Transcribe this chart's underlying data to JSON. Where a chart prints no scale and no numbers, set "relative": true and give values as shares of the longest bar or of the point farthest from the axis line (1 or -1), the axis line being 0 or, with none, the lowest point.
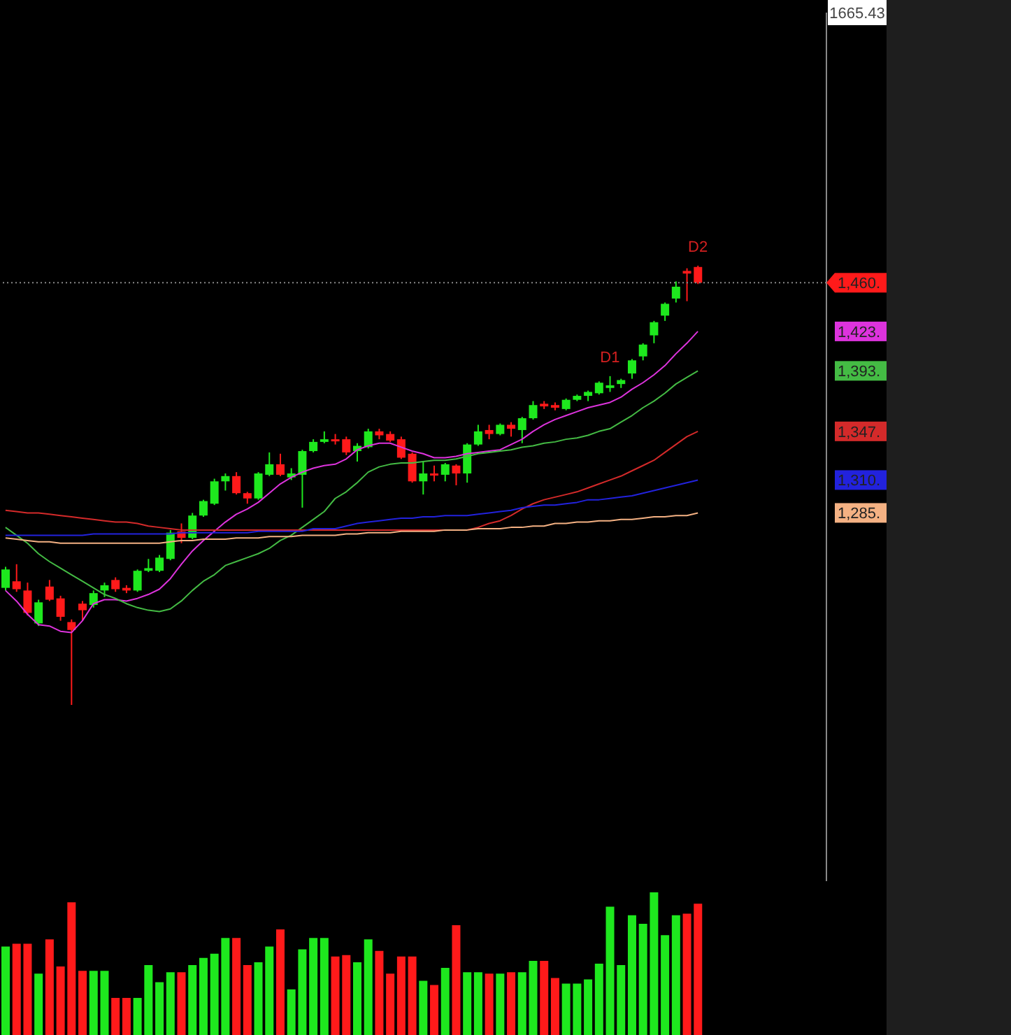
{
  "chart_data": [
    {
      "type": "candlestick",
      "categories": [
        null,
        null,
        null,
        null,
        null,
        null,
        null,
        null,
        null,
        null,
        null,
        null,
        null,
        null,
        null,
        null,
        null,
        null,
        null,
        null,
        null,
        null,
        null,
        null,
        null,
        null,
        null,
        null,
        null,
        null,
        null,
        null,
        null,
        null,
        null,
        null,
        null,
        null,
        null,
        null,
        null,
        null,
        null,
        null,
        null,
        null,
        null,
        null,
        null,
        null,
        null,
        null,
        null,
        null,
        null,
        null,
        null,
        null,
        null,
        null,
        null,
        null,
        null,
        null
      ],
      "ohlc": [
        [
          1228,
          1244,
          1226,
          1242
        ],
        [
          1233,
          1246,
          1225,
          1227
        ],
        [
          1226,
          1232,
          1207,
          1209
        ],
        [
          1201,
          1219,
          1199,
          1217
        ],
        [
          1229,
          1234,
          1218,
          1219
        ],
        [
          1220,
          1222,
          1203,
          1206
        ],
        [
          1202,
          1204,
          1139,
          1196
        ],
        [
          1216,
          1218,
          1203,
          1211
        ],
        [
          1215,
          1226,
          1213,
          1224
        ],
        [
          1226,
          1232,
          1221,
          1230
        ],
        [
          1234,
          1236,
          1225,
          1227
        ],
        [
          1228,
          1230,
          1224,
          1226
        ],
        [
          1226,
          1242,
          1225,
          1241
        ],
        [
          1241,
          1250,
          1240,
          1243
        ],
        [
          1241,
          1253,
          1240,
          1251
        ],
        [
          1250,
          1272,
          1249,
          1270
        ],
        [
          1271,
          1277,
          1262,
          1266
        ],
        [
          1266,
          1285,
          1265,
          1283
        ],
        [
          1283,
          1295,
          1282,
          1294
        ],
        [
          1292,
          1311,
          1291,
          1309
        ],
        [
          1309,
          1315,
          1302,
          1313
        ],
        [
          1313,
          1316,
          1299,
          1300
        ],
        [
          1300,
          1301,
          1292,
          1296
        ],
        [
          1296,
          1316,
          1295,
          1315
        ],
        [
          1314,
          1331,
          1313,
          1322
        ],
        [
          1322,
          1330,
          1313,
          1314
        ],
        [
          1312,
          1319,
          1310,
          1315
        ],
        [
          1314,
          1333,
          1289,
          1332
        ],
        [
          1332,
          1341,
          1331,
          1339
        ],
        [
          1339,
          1347,
          1338,
          1341
        ],
        [
          1341,
          1345,
          1337,
          1340
        ],
        [
          1341,
          1343,
          1329,
          1331
        ],
        [
          1332,
          1338,
          1324,
          1336
        ],
        [
          1335,
          1349,
          1334,
          1347
        ],
        [
          1347,
          1349,
          1341,
          1344
        ],
        [
          1345,
          1347,
          1339,
          1340
        ],
        [
          1341,
          1343,
          1326,
          1327
        ],
        [
          1330,
          1331,
          1308,
          1309
        ],
        [
          1309,
          1324,
          1299,
          1315
        ],
        [
          1315,
          1321,
          1309,
          1314
        ],
        [
          1314,
          1323,
          1309,
          1322
        ],
        [
          1321,
          1322,
          1306,
          1315
        ],
        [
          1315,
          1338,
          1308,
          1337
        ],
        [
          1337,
          1352,
          1336,
          1347
        ],
        [
          1348,
          1352,
          1341,
          1345
        ],
        [
          1345,
          1353,
          1344,
          1352
        ],
        [
          1352,
          1354,
          1343,
          1349
        ],
        [
          1348,
          1358,
          1338,
          1357
        ],
        [
          1357,
          1370,
          1356,
          1367
        ],
        [
          1368,
          1370,
          1364,
          1366
        ],
        [
          1367,
          1369,
          1363,
          1365
        ],
        [
          1364,
          1372,
          1363,
          1371
        ],
        [
          1371,
          1375,
          1370,
          1374
        ],
        [
          1374,
          1378,
          1370,
          1377
        ],
        [
          1376,
          1385,
          1375,
          1384
        ],
        [
          1380,
          1389,
          1377,
          1382
        ],
        [
          1383,
          1387,
          1380,
          1386
        ],
        [
          1391,
          1402,
          1387,
          1401
        ],
        [
          1404,
          1414,
          1401,
          1413
        ],
        [
          1420,
          1431,
          1414,
          1430
        ],
        [
          1435,
          1445,
          1431,
          1444
        ],
        [
          1448,
          1461,
          1445,
          1457
        ],
        [
          1469,
          1471,
          1446,
          1467
        ],
        [
          1472,
          1473,
          1459,
          1460
        ]
      ],
      "colors": [
        "#1ee81e",
        "#ff1a1a",
        "#ff1a1a",
        "#1ee81e",
        "#ff1a1a",
        "#ff1a1a",
        "#ff1a1a",
        "#ff1a1a",
        "#1ee81e",
        "#1ee81e",
        "#ff1a1a",
        "#ff1a1a",
        "#1ee81e",
        "#1ee81e",
        "#1ee81e",
        "#1ee81e",
        "#ff1a1a",
        "#1ee81e",
        "#1ee81e",
        "#1ee81e",
        "#1ee81e",
        "#ff1a1a",
        "#ff1a1a",
        "#1ee81e",
        "#1ee81e",
        "#ff1a1a",
        "#1ee81e",
        "#1ee81e",
        "#1ee81e",
        "#1ee81e",
        "#ff1a1a",
        "#ff1a1a",
        "#1ee81e",
        "#1ee81e",
        "#ff1a1a",
        "#ff1a1a",
        "#ff1a1a",
        "#ff1a1a",
        "#1ee81e",
        "#ff1a1a",
        "#1ee81e",
        "#ff1a1a",
        "#1ee81e",
        "#1ee81e",
        "#ff1a1a",
        "#1ee81e",
        "#ff1a1a",
        "#1ee81e",
        "#1ee81e",
        "#ff1a1a",
        "#ff1a1a",
        "#1ee81e",
        "#1ee81e",
        "#1ee81e",
        "#1ee81e",
        "#1ee81e",
        "#1ee81e",
        "#1ee81e",
        "#1ee81e",
        "#1ee81e",
        "#1ee81e",
        "#1ee81e",
        "#ff1a1a",
        "#ff1a1a"
      ],
      "value_labels": [
        null,
        null,
        null,
        null,
        null,
        null,
        null,
        null,
        null,
        null,
        null,
        null,
        null,
        null,
        null,
        null,
        null,
        null,
        null,
        null,
        null,
        null,
        null,
        null,
        null,
        null,
        null,
        null,
        null,
        null,
        null,
        null,
        null,
        null,
        null,
        null,
        null,
        null,
        null,
        null,
        null,
        null,
        null,
        null,
        null,
        null,
        null,
        null,
        null,
        null,
        null,
        null,
        null,
        null,
        null,
        "D1",
        null,
        null,
        null,
        null,
        null,
        null,
        null,
        "D2"
      ],
      "series": [
        {
          "type": "line",
          "color": "#dd33dd",
          "values": [
            1226,
            1218,
            1208,
            1200,
            1199,
            1195,
            1194,
            1203,
            1216,
            1219,
            1219,
            1218,
            1220,
            1223,
            1227,
            1235,
            1246,
            1256,
            1264,
            1271,
            1278,
            1284,
            1288,
            1293,
            1300,
            1307,
            1312,
            1316,
            1319,
            1321,
            1322,
            1326,
            1333,
            1336,
            1338,
            1338,
            1335,
            1332,
            1330,
            1327,
            1327,
            1328,
            1330,
            1331,
            1332,
            1333,
            1337,
            1341,
            1347,
            1352,
            1356,
            1359,
            1362,
            1365,
            1367,
            1369,
            1373,
            1379,
            1384,
            1390,
            1397,
            1406,
            1414,
            1423
          ]
        },
        {
          "type": "line",
          "color": "#44bb44",
          "values": [
            1274,
            1268,
            1262,
            1254,
            1248,
            1243,
            1238,
            1233,
            1228,
            1223,
            1220,
            1216,
            1213,
            1211,
            1210,
            1212,
            1218,
            1226,
            1233,
            1238,
            1245,
            1248,
            1251,
            1254,
            1258,
            1264,
            1268,
            1274,
            1280,
            1286,
            1296,
            1301,
            1308,
            1316,
            1320,
            1322,
            1323,
            1323,
            1324,
            1325,
            1325,
            1326,
            1328,
            1330,
            1331,
            1332,
            1333,
            1335,
            1336,
            1338,
            1339,
            1341,
            1342,
            1344,
            1347,
            1349,
            1354,
            1359,
            1365,
            1370,
            1376,
            1383,
            1388,
            1393
          ]
        },
        {
          "type": "line",
          "color": "#d42a2a",
          "values": [
            1287,
            1286,
            1285,
            1285,
            1284,
            1283,
            1282,
            1281,
            1280,
            1279,
            1278,
            1278,
            1277,
            1275,
            1274,
            1273,
            1272,
            1272,
            1272,
            1272,
            1272,
            1272,
            1272,
            1272,
            1272,
            1272,
            1272,
            1272,
            1272,
            1272,
            1272,
            1272,
            1272,
            1272,
            1272,
            1272,
            1272,
            1272,
            1272,
            1272,
            1272,
            1272,
            1272,
            1274,
            1277,
            1279,
            1283,
            1288,
            1292,
            1295,
            1297,
            1299,
            1301,
            1304,
            1307,
            1310,
            1313,
            1317,
            1321,
            1325,
            1331,
            1337,
            1343,
            1347
          ]
        },
        {
          "type": "line",
          "color": "#2222dd",
          "values": [
            1268,
            1268,
            1268,
            1268,
            1268,
            1268,
            1268,
            1268,
            1269,
            1269,
            1269,
            1269,
            1269,
            1269,
            1269,
            1269,
            1270,
            1270,
            1270,
            1270,
            1270,
            1270,
            1270,
            1271,
            1271,
            1271,
            1271,
            1271,
            1273,
            1273,
            1273,
            1275,
            1277,
            1278,
            1279,
            1280,
            1281,
            1281,
            1282,
            1282,
            1283,
            1283,
            1283,
            1284,
            1285,
            1286,
            1287,
            1289,
            1290,
            1291,
            1291,
            1292,
            1293,
            1295,
            1295,
            1296,
            1297,
            1298,
            1300,
            1302,
            1304,
            1306,
            1308,
            1310
          ]
        },
        {
          "type": "line",
          "color": "#f4b183",
          "values": [
            1266,
            1265,
            1264,
            1263,
            1263,
            1262,
            1262,
            1262,
            1262,
            1262,
            1262,
            1262,
            1262,
            1262,
            1262,
            1263,
            1264,
            1264,
            1265,
            1265,
            1265,
            1266,
            1266,
            1266,
            1267,
            1267,
            1267,
            1268,
            1268,
            1268,
            1268,
            1269,
            1269,
            1270,
            1270,
            1270,
            1271,
            1271,
            1271,
            1271,
            1272,
            1272,
            1272,
            1273,
            1273,
            1273,
            1274,
            1274,
            1275,
            1275,
            1277,
            1277,
            1278,
            1278,
            1279,
            1279,
            1280,
            1280,
            1281,
            1282,
            1282,
            1283,
            1283,
            1285
          ]
        }
      ],
      "ref_lines": [
        {
          "axis": "y",
          "value": 1460,
          "color": "#888888",
          "line_style": "dotted"
        }
      ],
      "ylim": [
        1005,
        1665.43
      ],
      "yticks": [
        {
          "value": 1665.43,
          "label": "1665.43"
        },
        {
          "value": 1460,
          "label": "1,460."
        },
        {
          "value": 1423,
          "label": "1,423."
        },
        {
          "value": 1393,
          "label": "1,393."
        },
        {
          "value": 1347,
          "label": "1,347."
        },
        {
          "value": 1310,
          "label": "1,310."
        },
        {
          "value": 1285,
          "label": "1,285."
        }
      ],
      "tick_labels": "y"
    },
    {
      "type": "bar",
      "relative": true,
      "categories": [
        null,
        null,
        null,
        null,
        null,
        null,
        null,
        null,
        null,
        null,
        null,
        null,
        null,
        null,
        null,
        null,
        null,
        null,
        null,
        null,
        null,
        null,
        null,
        null,
        null,
        null,
        null,
        null,
        null,
        null,
        null,
        null,
        null,
        null,
        null,
        null,
        null,
        null,
        null,
        null,
        null,
        null,
        null,
        null,
        null,
        null,
        null,
        null,
        null,
        null,
        null,
        null,
        null,
        null,
        null,
        null,
        null,
        null,
        null,
        null,
        null,
        null,
        null,
        null
      ],
      "values": [
        0.62,
        0.64,
        0.64,
        0.43,
        0.67,
        0.48,
        0.93,
        0.45,
        0.45,
        0.45,
        0.26,
        0.26,
        0.26,
        0.49,
        0.37,
        0.44,
        0.44,
        0.49,
        0.54,
        0.57,
        0.68,
        0.68,
        0.49,
        0.51,
        0.62,
        0.74,
        0.32,
        0.6,
        0.68,
        0.68,
        0.55,
        0.56,
        0.51,
        0.67,
        0.59,
        0.43,
        0.55,
        0.55,
        0.38,
        0.35,
        0.47,
        0.77,
        0.44,
        0.44,
        0.43,
        0.43,
        0.44,
        0.44,
        0.52,
        0.52,
        0.4,
        0.36,
        0.36,
        0.39,
        0.5,
        0.9,
        0.49,
        0.84,
        0.78,
        1,
        0.7,
        0.84,
        0.85,
        0.92
      ],
      "colors": [
        "#1ee81e",
        "#ff1a1a",
        "#ff1a1a",
        "#1ee81e",
        "#ff1a1a",
        "#ff1a1a",
        "#ff1a1a",
        "#ff1a1a",
        "#1ee81e",
        "#1ee81e",
        "#ff1a1a",
        "#ff1a1a",
        "#1ee81e",
        "#1ee81e",
        "#1ee81e",
        "#1ee81e",
        "#ff1a1a",
        "#1ee81e",
        "#1ee81e",
        "#1ee81e",
        "#1ee81e",
        "#ff1a1a",
        "#ff1a1a",
        "#1ee81e",
        "#1ee81e",
        "#ff1a1a",
        "#1ee81e",
        "#1ee81e",
        "#1ee81e",
        "#1ee81e",
        "#ff1a1a",
        "#ff1a1a",
        "#1ee81e",
        "#1ee81e",
        "#ff1a1a",
        "#ff1a1a",
        "#ff1a1a",
        "#ff1a1a",
        "#1ee81e",
        "#ff1a1a",
        "#1ee81e",
        "#ff1a1a",
        "#1ee81e",
        "#1ee81e",
        "#ff1a1a",
        "#1ee81e",
        "#ff1a1a",
        "#1ee81e",
        "#1ee81e",
        "#ff1a1a",
        "#ff1a1a",
        "#1ee81e",
        "#1ee81e",
        "#1ee81e",
        "#1ee81e",
        "#1ee81e",
        "#1ee81e",
        "#1ee81e",
        "#1ee81e",
        "#1ee81e",
        "#1ee81e",
        "#1ee81e",
        "#ff1a1a",
        "#ff1a1a"
      ]
    }
  ]
}
